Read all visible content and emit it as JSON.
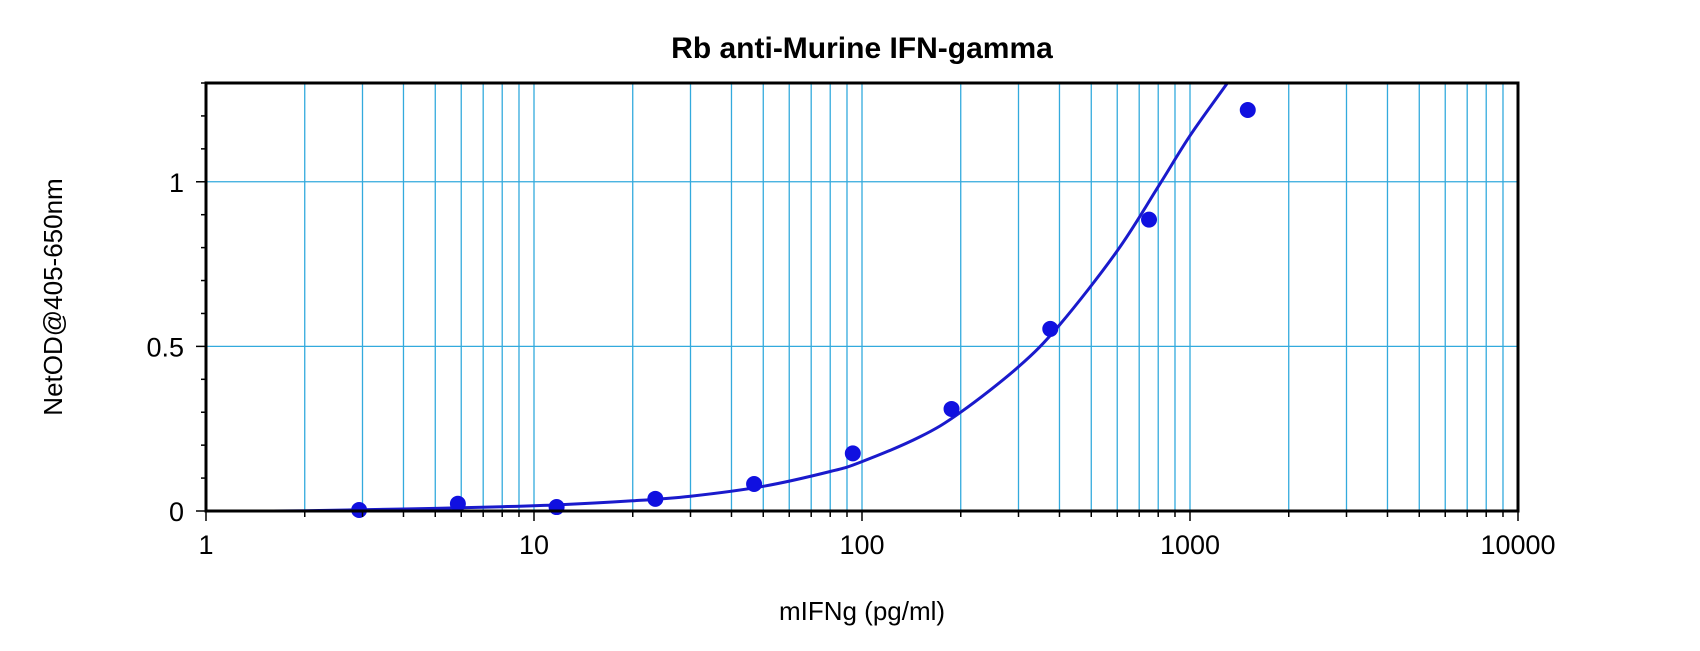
{
  "chart_data": {
    "type": "scatter",
    "title": "Rb anti-Murine IFN-gamma",
    "xlabel": "mIFNg (pg/ml)",
    "ylabel": "NetOD@405-650nm",
    "x_scale": "log",
    "xlim": [
      1,
      10000
    ],
    "ylim": [
      0,
      1.3
    ],
    "x_ticks": [
      1,
      10,
      100,
      1000,
      10000
    ],
    "x_tick_labels": [
      "1",
      "10",
      "100",
      "1000",
      "10000"
    ],
    "y_ticks": [
      0,
      0.5,
      1
    ],
    "y_tick_labels": [
      "0",
      "0.5",
      "1"
    ],
    "grid": true,
    "legend": "none",
    "colors": {
      "points": "#1010e0",
      "curve": "#1a1acc",
      "grid": "#33aadd",
      "axes": "#000000"
    },
    "series": [
      {
        "x": [
          2.93,
          5.86,
          11.72,
          23.44,
          46.88,
          93.75,
          187.5,
          375,
          750,
          1500
        ],
        "y": [
          0.003,
          0.022,
          0.012,
          0.037,
          0.082,
          0.175,
          0.31,
          0.553,
          0.885,
          1.218
        ]
      }
    ],
    "fit_curve": {
      "x": [
        1.6,
        2,
        3,
        5,
        8,
        12,
        20,
        30,
        50,
        80,
        100,
        150,
        200,
        300,
        400,
        600,
        800,
        1000,
        1300,
        1800
      ],
      "y": [
        0.0,
        0.001,
        0.004,
        0.008,
        0.013,
        0.019,
        0.031,
        0.045,
        0.075,
        0.12,
        0.15,
        0.225,
        0.3,
        0.438,
        0.565,
        0.79,
        0.985,
        1.14,
        1.3,
        1.5
      ]
    }
  }
}
